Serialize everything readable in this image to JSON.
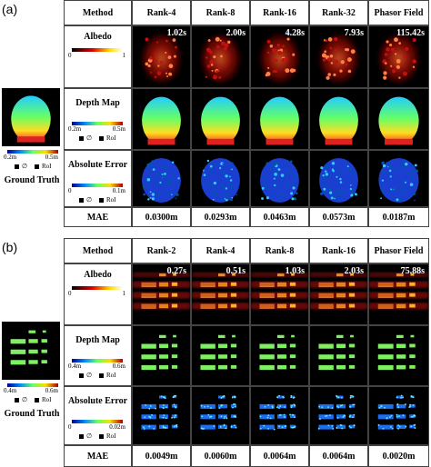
{
  "panels": [
    {
      "label": "(a)",
      "header": [
        "Method",
        "Rank-4",
        "Rank-8",
        "Rank-16",
        "Rank-32",
        "Phasor Field"
      ],
      "rows": [
        {
          "label": "Albedo",
          "scale": [
            "0",
            "1"
          ],
          "times": [
            "1.02s",
            "2.00s",
            "4.28s",
            "7.93s",
            "115.42s"
          ]
        },
        {
          "label": "Depth Map",
          "scale": [
            "0.2m",
            "0.5m"
          ],
          "legend": [
            "∅",
            "RoI"
          ]
        },
        {
          "label": "Absolute Error",
          "scale": [
            "0",
            "0.1m"
          ],
          "legend": [
            "∅",
            "RoI"
          ]
        }
      ],
      "mae": {
        "label": "MAE",
        "values": [
          "0.0300m",
          "0.0293m",
          "0.0463m",
          "0.0573m",
          "0.0187m"
        ]
      },
      "ground_truth": {
        "scale": [
          "0.2m",
          "0.5m"
        ],
        "legend": [
          "∅",
          "RoI"
        ],
        "label": "Ground Truth"
      }
    },
    {
      "label": "(b)",
      "header": [
        "Method",
        "Rank-2",
        "Rank-4",
        "Rank-8",
        "Rank-16",
        "Phasor Field"
      ],
      "rows": [
        {
          "label": "Albedo",
          "scale": [
            "0",
            "1"
          ],
          "times": [
            "0.27s",
            "0.51s",
            "1.03s",
            "2.03s",
            "75.88s"
          ]
        },
        {
          "label": "Depth Map",
          "scale": [
            "0.4m",
            "0.6m"
          ],
          "legend": [
            "∅",
            "RoI"
          ]
        },
        {
          "label": "Absolute Error",
          "scale": [
            "0",
            "0.02m"
          ],
          "legend": [
            "∅",
            "RoI"
          ]
        }
      ],
      "mae": {
        "label": "MAE",
        "values": [
          "0.0049m",
          "0.0060m",
          "0.0064m",
          "0.0064m",
          "0.0020m"
        ]
      },
      "ground_truth": {
        "scale": [
          "0.4m",
          "0.6m"
        ],
        "legend": [
          "∅",
          "RoI"
        ],
        "label": "Ground Truth"
      }
    }
  ]
}
